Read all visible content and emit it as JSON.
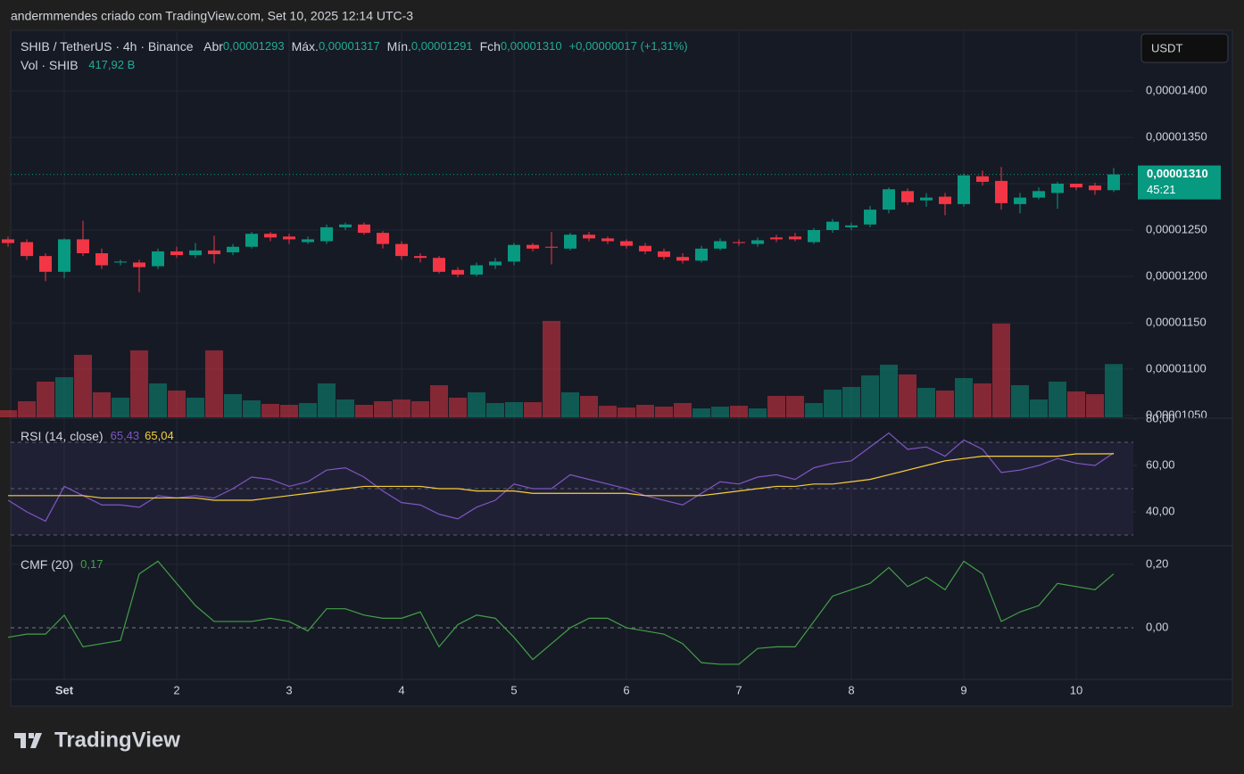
{
  "watermark": "andermmendes criado com TradingView.com, Set 10, 2025 12:14 UTC-3",
  "brand": "TradingView",
  "chart_data": {
    "type": "candlestick",
    "symbol": "SHIB / TetherUS · 4h · Binance",
    "legend": [
      {
        "label": "Abr",
        "value": "0,00001293"
      },
      {
        "label": "Máx.",
        "value": "0,00001317"
      },
      {
        "label": "Mín.",
        "value": "0,00001291"
      },
      {
        "label": "Fch",
        "value": "0,00001310"
      }
    ],
    "change": "+0,00000017 (+1,31%)",
    "currency": "USDT",
    "up_color": "#089981",
    "down_color": "#f23645",
    "open": [
      1.24e-05,
      1.237e-05,
      1.222e-05,
      1.205e-05,
      1.24e-05,
      1.225e-05,
      1.215e-05,
      1.215e-05,
      1.211e-05,
      1.227e-05,
      1.223e-05,
      1.228e-05,
      1.226e-05,
      1.232e-05,
      1.246e-05,
      1.243e-05,
      1.237e-05,
      1.238e-05,
      1.253e-05,
      1.256e-05,
      1.247e-05,
      1.235e-05,
      1.222e-05,
      1.22e-05,
      1.207e-05,
      1.202e-05,
      1.212e-05,
      1.216e-05,
      1.234e-05,
      1.232e-05,
      1.23e-05,
      1.245e-05,
      1.241e-05,
      1.238e-05,
      1.233e-05,
      1.227e-05,
      1.221e-05,
      1.217e-05,
      1.23e-05,
      1.237e-05,
      1.235e-05,
      1.242e-05,
      1.243e-05,
      1.237e-05,
      1.25e-05,
      1.253e-05,
      1.256e-05,
      1.272e-05,
      1.292e-05,
      1.282e-05,
      1.286e-05,
      1.278e-05,
      1.308e-05,
      1.303e-05,
      1.278e-05,
      1.285e-05,
      1.29e-05,
      1.3e-05,
      1.298e-05,
      1.293e-05
    ],
    "high": [
      1.243e-05,
      1.24e-05,
      1.225e-05,
      1.241e-05,
      1.26e-05,
      1.23e-05,
      1.218e-05,
      1.218e-05,
      1.23e-05,
      1.232e-05,
      1.236e-05,
      1.244e-05,
      1.235e-05,
      1.248e-05,
      1.248e-05,
      1.246e-05,
      1.243e-05,
      1.256e-05,
      1.258e-05,
      1.258e-05,
      1.249e-05,
      1.238e-05,
      1.225e-05,
      1.222e-05,
      1.21e-05,
      1.215e-05,
      1.22e-05,
      1.236e-05,
      1.236e-05,
      1.248e-05,
      1.247e-05,
      1.248e-05,
      1.243e-05,
      1.24e-05,
      1.236e-05,
      1.23e-05,
      1.225e-05,
      1.233e-05,
      1.241e-05,
      1.24e-05,
      1.242e-05,
      1.245e-05,
      1.247e-05,
      1.252e-05,
      1.262e-05,
      1.258e-05,
      1.276e-05,
      1.296e-05,
      1.295e-05,
      1.29e-05,
      1.29e-05,
      1.311e-05,
      1.314e-05,
      1.318e-05,
      1.29e-05,
      1.296e-05,
      1.302e-05,
      1.3e-05,
      1.301e-05,
      1.317e-05
    ],
    "low": [
      1.232e-05,
      1.218e-05,
      1.195e-05,
      1.198e-05,
      1.222e-05,
      1.208e-05,
      1.212e-05,
      1.183e-05,
      1.208e-05,
      1.22e-05,
      1.22e-05,
      1.214e-05,
      1.223e-05,
      1.23e-05,
      1.238e-05,
      1.235e-05,
      1.235e-05,
      1.235e-05,
      1.25e-05,
      1.245e-05,
      1.23e-05,
      1.218e-05,
      1.215e-05,
      1.203e-05,
      1.199e-05,
      1.2e-05,
      1.208e-05,
      1.212e-05,
      1.227e-05,
      1.213e-05,
      1.228e-05,
      1.238e-05,
      1.235e-05,
      1.23e-05,
      1.224e-05,
      1.218e-05,
      1.214e-05,
      1.215e-05,
      1.228e-05,
      1.233e-05,
      1.232e-05,
      1.237e-05,
      1.238e-05,
      1.235e-05,
      1.247e-05,
      1.25e-05,
      1.253e-05,
      1.268e-05,
      1.277e-05,
      1.275e-05,
      1.266e-05,
      1.275e-05,
      1.298e-05,
      1.272e-05,
      1.268e-05,
      1.283e-05,
      1.273e-05,
      1.293e-05,
      1.288e-05,
      1.291e-05
    ],
    "close": [
      1.236e-05,
      1.222e-05,
      1.205e-05,
      1.24e-05,
      1.225e-05,
      1.212e-05,
      1.216e-05,
      1.21e-05,
      1.227e-05,
      1.223e-05,
      1.228e-05,
      1.224e-05,
      1.232e-05,
      1.246e-05,
      1.242e-05,
      1.24e-05,
      1.24e-05,
      1.253e-05,
      1.256e-05,
      1.247e-05,
      1.235e-05,
      1.222e-05,
      1.22e-05,
      1.205e-05,
      1.202e-05,
      1.212e-05,
      1.216e-05,
      1.234e-05,
      1.23e-05,
      1.231e-05,
      1.245e-05,
      1.241e-05,
      1.238e-05,
      1.233e-05,
      1.227e-05,
      1.221e-05,
      1.217e-05,
      1.23e-05,
      1.238e-05,
      1.236e-05,
      1.239e-05,
      1.24e-05,
      1.24e-05,
      1.25e-05,
      1.259e-05,
      1.255e-05,
      1.272e-05,
      1.294e-05,
      1.28e-05,
      1.285e-05,
      1.278e-05,
      1.309e-05,
      1.302e-05,
      1.279e-05,
      1.285e-05,
      1.292e-05,
      1.3e-05,
      1.296e-05,
      1.293e-05,
      1.31e-05
    ],
    "ylim": [
      1.0481e-05,
      1.4644e-05
    ],
    "yticks": [
      {
        "value": 1.05e-05,
        "label": "0,00001050"
      },
      {
        "value": 1.1e-05,
        "label": "0,00001100"
      },
      {
        "value": 1.15e-05,
        "label": "0,00001150"
      },
      {
        "value": 1.2e-05,
        "label": "0,00001200"
      },
      {
        "value": 1.25e-05,
        "label": "0,00001250"
      },
      {
        "value": 1.3e-05,
        "label": "0,00001300"
      },
      {
        "value": 1.35e-05,
        "label": "0,00001350"
      },
      {
        "value": 1.4e-05,
        "label": "0,00001400"
      }
    ],
    "last_price": {
      "value": 1.31e-05,
      "label": "0,00001310"
    },
    "countdown": "45:21",
    "xticks": [
      {
        "value": 3,
        "label": "Set"
      },
      {
        "value": 9,
        "label": "2"
      },
      {
        "value": 15,
        "label": "3"
      },
      {
        "value": 21,
        "label": "4"
      },
      {
        "value": 27,
        "label": "5"
      },
      {
        "value": 33,
        "label": "6"
      },
      {
        "value": 39,
        "label": "7"
      },
      {
        "value": 45,
        "label": "8"
      },
      {
        "value": 51,
        "label": "9"
      },
      {
        "value": 57,
        "label": "10"
      }
    ],
    "grid": true,
    "volume": {
      "name": "Vol · SHIB",
      "last_label": "417,92 B",
      "ylim": [
        0,
        1000
      ],
      "values": [
        56,
        126,
        280,
        315,
        490,
        196,
        154,
        525,
        266,
        210,
        154,
        525,
        182,
        133,
        105,
        98,
        112,
        266,
        140,
        98,
        126,
        140,
        126,
        252,
        154,
        196,
        112,
        119,
        119,
        756,
        196,
        168,
        91,
        77,
        98,
        84,
        112,
        70,
        84,
        91,
        70,
        168,
        168,
        112,
        217,
        238,
        329,
        413,
        336,
        231,
        210,
        308,
        266,
        735,
        252,
        140,
        280,
        203,
        182,
        417.92
      ]
    },
    "rsi": {
      "name": "RSI (14, close)",
      "color": "#7e57c2",
      "ma_color": "#f7d038",
      "value_label": "65,43",
      "ma_label": "65,04",
      "values": [
        45,
        40,
        36,
        51,
        47,
        43,
        43,
        42,
        47,
        46,
        47,
        46,
        50,
        55,
        54,
        51,
        53,
        58,
        59,
        55,
        49,
        44,
        43,
        39,
        37,
        42,
        45,
        52,
        50,
        50,
        56,
        54,
        52,
        50,
        47,
        45,
        43,
        48,
        53,
        52,
        55,
        56,
        54,
        59,
        61,
        62,
        68,
        74,
        67,
        68,
        64,
        71,
        67,
        57,
        58,
        60,
        63,
        61,
        60,
        65.43
      ],
      "ma_values": [
        47,
        47,
        47,
        47,
        47,
        46,
        46,
        46,
        46,
        46,
        46,
        45,
        45,
        45,
        46,
        47,
        48,
        49,
        50,
        51,
        51,
        51,
        51,
        50,
        50,
        49,
        49,
        49,
        48,
        48,
        48,
        48,
        48,
        48,
        47,
        47,
        47,
        47,
        48,
        49,
        50,
        51,
        51,
        52,
        52,
        53,
        54,
        56,
        58,
        60,
        62,
        63,
        64,
        64,
        64,
        64,
        64,
        65,
        65,
        65.04
      ],
      "ylim": [
        25.4,
        80
      ],
      "yticks": [
        {
          "value": 40,
          "label": "40,00"
        },
        {
          "value": 60,
          "label": "60,00"
        },
        {
          "value": 80,
          "label": "80,00"
        }
      ],
      "bands": [
        30,
        50,
        70
      ]
    },
    "cmf": {
      "name": "CMF (20)",
      "color": "#43a047",
      "value_label": "0,17",
      "values": [
        -0.03,
        -0.02,
        -0.02,
        0.04,
        -0.06,
        -0.05,
        -0.04,
        0.17,
        0.21,
        0.14,
        0.07,
        0.02,
        0.02,
        0.02,
        0.03,
        0.02,
        -0.01,
        0.06,
        0.06,
        0.04,
        0.03,
        0.03,
        0.05,
        -0.06,
        0.01,
        0.04,
        0.03,
        -0.03,
        -0.1,
        -0.05,
        0,
        0.03,
        0.03,
        0,
        -0.01,
        -0.02,
        -0.05,
        -0.11,
        -0.115,
        -0.115,
        -0.065,
        -0.06,
        -0.06,
        0.02,
        0.1,
        0.12,
        0.14,
        0.19,
        0.13,
        0.16,
        0.12,
        0.21,
        0.17,
        0.02,
        0.05,
        0.07,
        0.14,
        0.13,
        0.12,
        0.17
      ],
      "ylim": [
        -0.163,
        0.256
      ],
      "yticks": [
        {
          "value": 0,
          "label": "0,00"
        },
        {
          "value": 0.2,
          "label": "0,20"
        }
      ]
    }
  }
}
